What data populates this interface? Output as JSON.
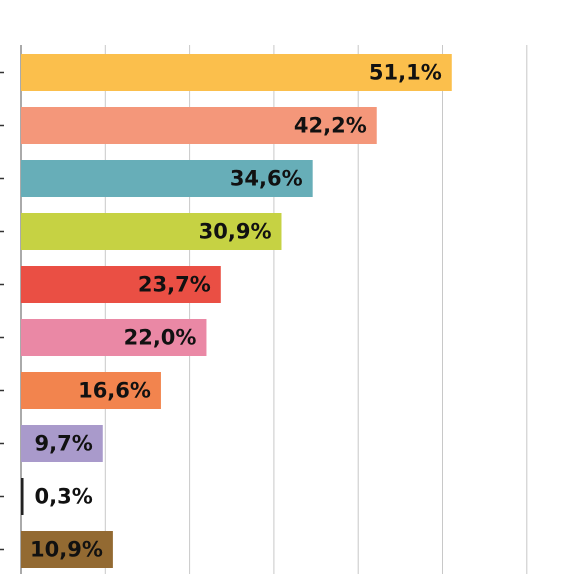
{
  "chart_data": {
    "type": "bar",
    "orientation": "horizontal",
    "values": [
      51.1,
      42.2,
      34.6,
      30.9,
      23.7,
      22.0,
      16.6,
      9.7,
      0.3,
      10.9
    ],
    "data_labels": [
      "51,1%",
      "42,2%",
      "34,6%",
      "30,9%",
      "23,7%",
      "22,0%",
      "16,6%",
      "9,7%",
      "0,3%",
      "10,9%"
    ],
    "colors": [
      "#fbbf4c",
      "#f4977a",
      "#67aeb8",
      "#c6d243",
      "#ea4f44",
      "#ea88a5",
      "#f2844e",
      "#a99acb",
      "#222222",
      "#936a32"
    ],
    "xlim": [
      0,
      60
    ],
    "grid": true,
    "legend": "none",
    "title": "",
    "xlabel": "",
    "ylabel": ""
  }
}
